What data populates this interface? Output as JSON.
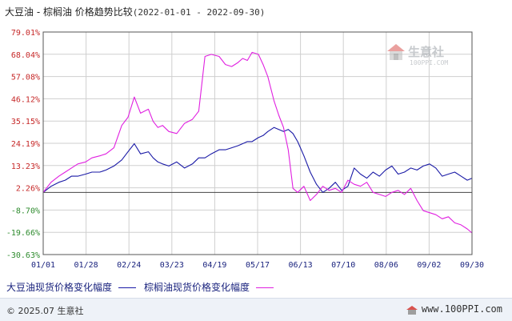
{
  "header": {
    "title": "大豆油 - 棕榈油 价格趋势比较",
    "range": "(2022-01-01 - 2022-09-30)"
  },
  "watermark": {
    "cn": "生意社",
    "en": "100PPI.COM"
  },
  "legend": {
    "items": [
      {
        "label": "大豆油现货价格变化幅度",
        "color": "#1a1aa6"
      },
      {
        "label": "棕榈油现货价格变化幅度",
        "color": "#e020e0"
      }
    ]
  },
  "footer": {
    "copyright": "© 2025.07 生意社",
    "site": "www.100PPI.com"
  },
  "chart_data": {
    "type": "line",
    "x_ticks": [
      "01/01",
      "01/28",
      "02/24",
      "03/23",
      "04/19",
      "05/17",
      "06/13",
      "07/10",
      "08/06",
      "09/02",
      "09/30"
    ],
    "y_ticks": [
      "79.01%",
      "68.04%",
      "57.08%",
      "46.12%",
      "35.15%",
      "24.19%",
      "13.23%",
      "2.26%",
      "-8.70%",
      "-19.66%",
      "-30.63%"
    ],
    "ylim": [
      -30.63,
      79.01
    ],
    "baseline": 0,
    "grid": true,
    "x_index": [
      0,
      5,
      10,
      14,
      18,
      22,
      27,
      31,
      36,
      40,
      45,
      50,
      54,
      58,
      62,
      67,
      70,
      73,
      76,
      80,
      85,
      90,
      95,
      99,
      103,
      107,
      112,
      116,
      120,
      124,
      127,
      130,
      133,
      137,
      140,
      143,
      147,
      150,
      153,
      156,
      159,
      162,
      166,
      170,
      174,
      178,
      182,
      186,
      190,
      194,
      198,
      202,
      206,
      210,
      214,
      218,
      222,
      226,
      230,
      234,
      238,
      242,
      246,
      250,
      254,
      258,
      262,
      266,
      270,
      273
    ],
    "series": [
      {
        "name": "大豆油现货价格变化幅度",
        "color": "#1a1aa6",
        "values": [
          0,
          3,
          5,
          6,
          8,
          8,
          9,
          10,
          10,
          11,
          13,
          16,
          20,
          24,
          19,
          20,
          17,
          15,
          14,
          13,
          15,
          12,
          14,
          17,
          17,
          19,
          21,
          21,
          22,
          23,
          24,
          25,
          25,
          27,
          28,
          30,
          32,
          31,
          30,
          31,
          29,
          25,
          18,
          10,
          4,
          0,
          2,
          5,
          1,
          3,
          12,
          9,
          7,
          10,
          8,
          11,
          13,
          9,
          10,
          12,
          11,
          13,
          14,
          12,
          8,
          9,
          10,
          8,
          6,
          7
        ]
      },
      {
        "name": "棕榈油现货价格变化幅度",
        "color": "#e020e0",
        "values": [
          0,
          5,
          8,
          10,
          12,
          14,
          15,
          17,
          18,
          19,
          22,
          33,
          37,
          47,
          39,
          41,
          35,
          32,
          33,
          30,
          29,
          34,
          36,
          40,
          67,
          68,
          67,
          63,
          62,
          64,
          66,
          65,
          69,
          68,
          63,
          57,
          45,
          38,
          32,
          21,
          2,
          0,
          3,
          -4,
          -1,
          3,
          1,
          2,
          0,
          6,
          4,
          3,
          5,
          0,
          -1,
          -2,
          0,
          1,
          -1,
          2,
          -4,
          -9,
          -10,
          -11,
          -13,
          -12,
          -15,
          -16,
          -18,
          -20
        ]
      }
    ]
  }
}
